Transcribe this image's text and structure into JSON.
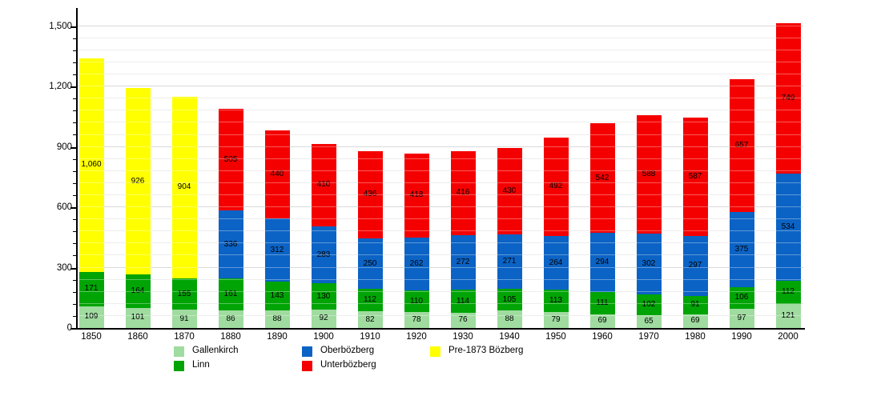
{
  "chart_data": {
    "type": "bar",
    "stacked": true,
    "title": "",
    "xlabel": "",
    "ylabel": "",
    "categories": [
      "1850",
      "1860",
      "1870",
      "1880",
      "1890",
      "1900",
      "1910",
      "1920",
      "1930",
      "1940",
      "1950",
      "1960",
      "1970",
      "1980",
      "1990",
      "2000"
    ],
    "series": [
      {
        "name": "Gallenkirch",
        "color": "#A0DBA0",
        "values": [
          109,
          101,
          91,
          86,
          88,
          92,
          82,
          78,
          76,
          88,
          79,
          69,
          65,
          69,
          97,
          121
        ]
      },
      {
        "name": "Linn",
        "color": "#00A405",
        "values": [
          171,
          164,
          155,
          161,
          143,
          130,
          112,
          110,
          114,
          105,
          113,
          111,
          102,
          91,
          106,
          112
        ]
      },
      {
        "name": "Oberbözberg",
        "color": "#0B63C5",
        "values": [
          0,
          0,
          0,
          336,
          312,
          283,
          250,
          262,
          272,
          271,
          264,
          294,
          302,
          297,
          375,
          534
        ]
      },
      {
        "name": "Unterbözberg",
        "color": "#F40000",
        "values": [
          0,
          0,
          0,
          505,
          440,
          410,
          436,
          418,
          416,
          430,
          492,
          542,
          588,
          587,
          657,
          749
        ]
      },
      {
        "name": "Pre-1873 Bözberg",
        "color": "#FFFF00",
        "values": [
          1060,
          926,
          904,
          0,
          0,
          0,
          0,
          0,
          0,
          0,
          0,
          0,
          0,
          0,
          0,
          0
        ]
      }
    ],
    "y_ticks": [
      0,
      300,
      600,
      900,
      1200,
      1500
    ],
    "ylim": [
      0,
      1590
    ],
    "minor_step": 60,
    "major_step": 300,
    "grid": true,
    "legend_position": "bottom",
    "legend_items": [
      {
        "label": "Gallenkirch",
        "color": "#A0DBA0"
      },
      {
        "label": "Linn",
        "color": "#00A405"
      },
      {
        "label": "Oberbözberg",
        "color": "#0B63C5"
      },
      {
        "label": "Unterbözberg",
        "color": "#F40000"
      },
      {
        "label": "Pre-1873 Bözberg",
        "color": "#FFFF00"
      }
    ]
  },
  "layout_colors": {
    "background": "#ffffff",
    "axis": "#000000",
    "grid_minor": "#e4e4e4",
    "grid_major": "#c6c6c6",
    "label_text": "#000000"
  }
}
